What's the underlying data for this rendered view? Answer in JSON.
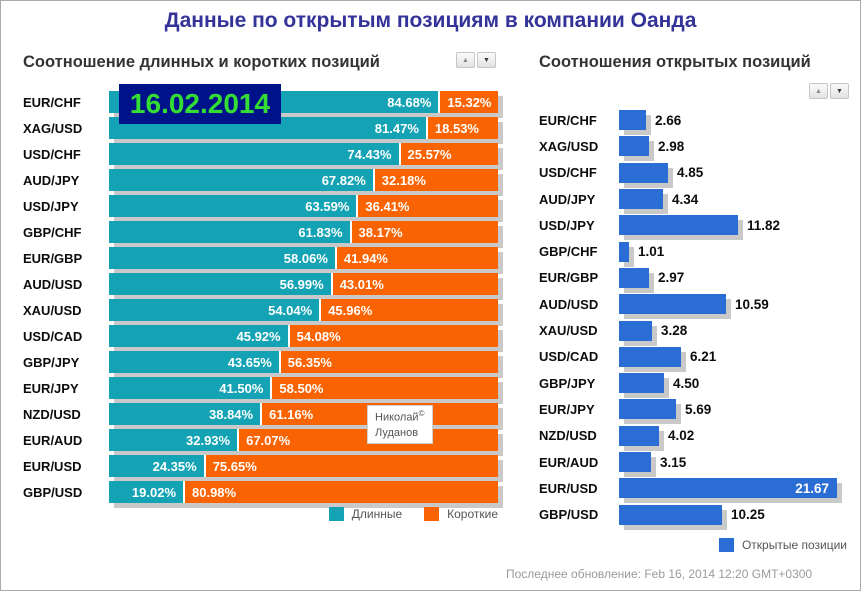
{
  "window": {
    "title": "Данные по открытым позициям в компании Оанда"
  },
  "date_overlay": "16.02.2014",
  "watermark": {
    "name_line1": "Николай",
    "copyright": "©",
    "name_line2": "Луданов"
  },
  "footer": {
    "last_update": "Последнее обновление: Feb 16, 2014 12:20 GMT+0300"
  },
  "controls": {
    "up_arrow": "▲",
    "down_arrow": "▼"
  },
  "colors": {
    "long": "#14a3b4",
    "short": "#f96302",
    "open": "#2a6dd5",
    "shadow": "#c9c9c9",
    "title": "#333399",
    "date_bg": "#00128a",
    "date_text": "#33dd33"
  },
  "chart_data": [
    {
      "type": "bar",
      "orientation": "horizontal",
      "stacked": true,
      "title": "Соотношение длинных и коротких позиций",
      "categories": [
        "EUR/CHF",
        "XAG/USD",
        "USD/CHF",
        "AUD/JPY",
        "USD/JPY",
        "GBP/CHF",
        "EUR/GBP",
        "AUD/USD",
        "XAU/USD",
        "USD/CAD",
        "GBP/JPY",
        "EUR/JPY",
        "NZD/USD",
        "EUR/AUD",
        "EUR/USD",
        "GBP/USD"
      ],
      "series": [
        {
          "name": "Длинные",
          "color": "#14a3b4",
          "values": [
            84.68,
            81.47,
            74.43,
            67.82,
            63.59,
            61.83,
            58.06,
            56.99,
            54.04,
            45.92,
            43.65,
            41.5,
            38.84,
            32.93,
            24.35,
            19.02
          ]
        },
        {
          "name": "Короткие",
          "color": "#f96302",
          "values": [
            15.32,
            18.53,
            25.57,
            32.18,
            36.41,
            38.17,
            41.94,
            43.01,
            45.96,
            54.08,
            56.35,
            58.5,
            61.16,
            67.07,
            75.65,
            80.98
          ]
        }
      ],
      "value_suffix": "%",
      "xlim": [
        0,
        100
      ],
      "grid": false,
      "legend_position": "bottom-right"
    },
    {
      "type": "bar",
      "orientation": "horizontal",
      "stacked": false,
      "title": "Соотношения открытых позиций",
      "categories": [
        "EUR/CHF",
        "XAG/USD",
        "USD/CHF",
        "AUD/JPY",
        "USD/JPY",
        "GBP/CHF",
        "EUR/GBP",
        "AUD/USD",
        "XAU/USD",
        "USD/CAD",
        "GBP/JPY",
        "EUR/JPY",
        "NZD/USD",
        "EUR/AUD",
        "EUR/USD",
        "GBP/USD"
      ],
      "series": [
        {
          "name": "Открытые позиции",
          "color": "#2a6dd5",
          "values": [
            2.66,
            2.98,
            4.85,
            4.34,
            11.82,
            1.01,
            2.97,
            10.59,
            3.28,
            6.21,
            4.5,
            5.69,
            4.02,
            3.15,
            21.67,
            10.25
          ]
        }
      ],
      "xlim": [
        0,
        21.67
      ],
      "grid": false,
      "legend_position": "bottom-right"
    }
  ]
}
